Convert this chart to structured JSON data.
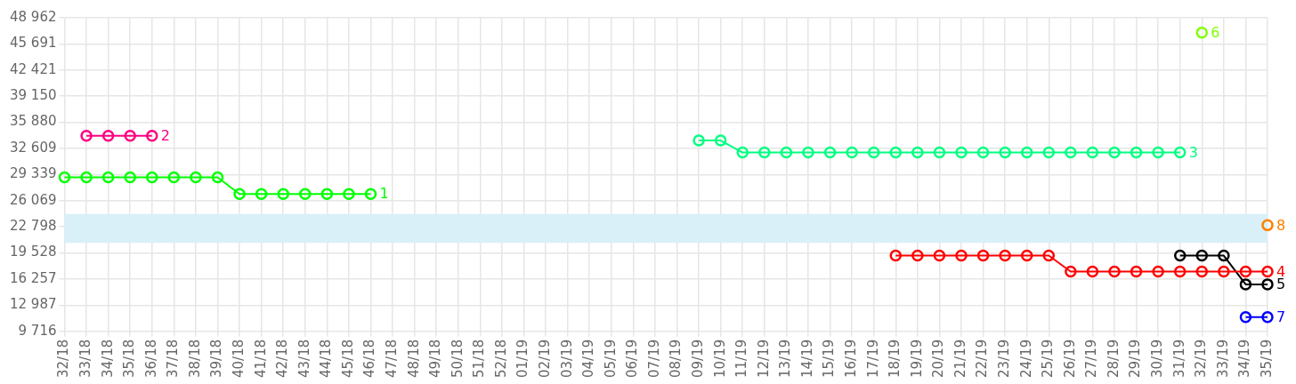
{
  "chart_data": {
    "type": "line",
    "categories": [
      "32/18",
      "33/18",
      "34/18",
      "35/18",
      "36/18",
      "37/18",
      "38/18",
      "39/18",
      "40/18",
      "41/18",
      "42/18",
      "43/18",
      "44/18",
      "45/18",
      "46/18",
      "47/18",
      "48/18",
      "49/18",
      "50/18",
      "51/18",
      "52/18",
      "01/19",
      "02/19",
      "03/19",
      "04/19",
      "05/19",
      "06/19",
      "07/19",
      "08/19",
      "09/19",
      "10/19",
      "11/19",
      "12/19",
      "13/19",
      "14/19",
      "15/19",
      "16/19",
      "17/19",
      "18/19",
      "19/19",
      "20/19",
      "21/19",
      "22/19",
      "23/19",
      "24/19",
      "25/19",
      "26/19",
      "27/19",
      "28/19",
      "29/19",
      "30/19",
      "31/19",
      "32/19",
      "33/19",
      "34/19",
      "35/19"
    ],
    "series": [
      {
        "name": "1",
        "color": "#00ff00",
        "values": [
          29000,
          29000,
          29000,
          29000,
          29000,
          29000,
          29000,
          29000,
          26900,
          26900,
          26900,
          26900,
          26900,
          26900,
          26900,
          null,
          null,
          null,
          null,
          null,
          null,
          null,
          null,
          null,
          null,
          null,
          null,
          null,
          null,
          null,
          null,
          null,
          null,
          null,
          null,
          null,
          null,
          null,
          null,
          null,
          null,
          null,
          null,
          null,
          null,
          null,
          null,
          null,
          null,
          null,
          null,
          null,
          null,
          null,
          null,
          null
        ]
      },
      {
        "name": "2",
        "color": "#ff0080",
        "values": [
          null,
          34200,
          34200,
          34200,
          34200,
          null,
          null,
          null,
          null,
          null,
          null,
          null,
          null,
          null,
          null,
          null,
          null,
          null,
          null,
          null,
          null,
          null,
          null,
          null,
          null,
          null,
          null,
          null,
          null,
          null,
          null,
          null,
          null,
          null,
          null,
          null,
          null,
          null,
          null,
          null,
          null,
          null,
          null,
          null,
          null,
          null,
          null,
          null,
          null,
          null,
          null,
          null,
          null,
          null,
          null,
          null
        ]
      },
      {
        "name": "3",
        "color": "#00ff80",
        "values": [
          null,
          null,
          null,
          null,
          null,
          null,
          null,
          null,
          null,
          null,
          null,
          null,
          null,
          null,
          null,
          null,
          null,
          null,
          null,
          null,
          null,
          null,
          null,
          null,
          null,
          null,
          null,
          null,
          null,
          33600,
          33600,
          32100,
          32100,
          32100,
          32100,
          32100,
          32100,
          32100,
          32100,
          32100,
          32100,
          32100,
          32100,
          32100,
          32100,
          32100,
          32100,
          32100,
          32100,
          32100,
          32100,
          32100,
          null,
          null,
          null,
          null
        ]
      },
      {
        "name": "4",
        "color": "#ff0000",
        "values": [
          null,
          null,
          null,
          null,
          null,
          null,
          null,
          null,
          null,
          null,
          null,
          null,
          null,
          null,
          null,
          null,
          null,
          null,
          null,
          null,
          null,
          null,
          null,
          null,
          null,
          null,
          null,
          null,
          null,
          null,
          null,
          null,
          null,
          null,
          null,
          null,
          null,
          null,
          19200,
          19200,
          19200,
          19200,
          19200,
          19200,
          19200,
          19200,
          17200,
          17200,
          17200,
          17200,
          17200,
          17200,
          17200,
          17200,
          17200,
          17200
        ]
      },
      {
        "name": "5",
        "color": "#000000",
        "values": [
          null,
          null,
          null,
          null,
          null,
          null,
          null,
          null,
          null,
          null,
          null,
          null,
          null,
          null,
          null,
          null,
          null,
          null,
          null,
          null,
          null,
          null,
          null,
          null,
          null,
          null,
          null,
          null,
          null,
          null,
          null,
          null,
          null,
          null,
          null,
          null,
          null,
          null,
          null,
          null,
          null,
          null,
          null,
          null,
          null,
          null,
          null,
          null,
          null,
          null,
          null,
          19200,
          19200,
          19200,
          15600,
          15600
        ]
      },
      {
        "name": "6",
        "color": "#80ff00",
        "values": [
          null,
          null,
          null,
          null,
          null,
          null,
          null,
          null,
          null,
          null,
          null,
          null,
          null,
          null,
          null,
          null,
          null,
          null,
          null,
          null,
          null,
          null,
          null,
          null,
          null,
          null,
          null,
          null,
          null,
          null,
          null,
          null,
          null,
          null,
          null,
          null,
          null,
          null,
          null,
          null,
          null,
          null,
          null,
          null,
          null,
          null,
          null,
          null,
          null,
          null,
          null,
          null,
          47100,
          null,
          null,
          null
        ]
      },
      {
        "name": "7",
        "color": "#0000ff",
        "values": [
          null,
          null,
          null,
          null,
          null,
          null,
          null,
          null,
          null,
          null,
          null,
          null,
          null,
          null,
          null,
          null,
          null,
          null,
          null,
          null,
          null,
          null,
          null,
          null,
          null,
          null,
          null,
          null,
          null,
          null,
          null,
          null,
          null,
          null,
          null,
          null,
          null,
          null,
          null,
          null,
          null,
          null,
          null,
          null,
          null,
          null,
          null,
          null,
          null,
          null,
          null,
          null,
          null,
          null,
          11500,
          11500
        ]
      },
      {
        "name": "8",
        "color": "#ff8000",
        "values": [
          null,
          null,
          null,
          null,
          null,
          null,
          null,
          null,
          null,
          null,
          null,
          null,
          null,
          null,
          null,
          null,
          null,
          null,
          null,
          null,
          null,
          null,
          null,
          null,
          null,
          null,
          null,
          null,
          null,
          null,
          null,
          null,
          null,
          null,
          null,
          null,
          null,
          null,
          null,
          null,
          null,
          null,
          null,
          null,
          null,
          null,
          null,
          null,
          null,
          null,
          null,
          null,
          null,
          null,
          null,
          23000
        ]
      }
    ],
    "ylim": [
      9716,
      48962
    ],
    "yticks": [
      {
        "value": 9716,
        "label": "9 716"
      },
      {
        "value": 12987,
        "label": "12 987"
      },
      {
        "value": 16257,
        "label": "16 257"
      },
      {
        "value": 19528,
        "label": "19 528"
      },
      {
        "value": 22798,
        "label": "22 798"
      },
      {
        "value": 26069,
        "label": "26 069"
      },
      {
        "value": 29339,
        "label": "29 339"
      },
      {
        "value": 32609,
        "label": "32 609"
      },
      {
        "value": 35880,
        "label": "35 880"
      },
      {
        "value": 39150,
        "label": "39 150"
      },
      {
        "value": 42421,
        "label": "42 421"
      },
      {
        "value": 45691,
        "label": "45 691"
      },
      {
        "value": 48962,
        "label": "48 962"
      }
    ],
    "bands": [
      {
        "axis": "y",
        "from": 20800,
        "to": 24400,
        "color": "#d9f0f8"
      }
    ],
    "grid": true,
    "legend": false,
    "marker": "circle",
    "line_style": "solid"
  }
}
